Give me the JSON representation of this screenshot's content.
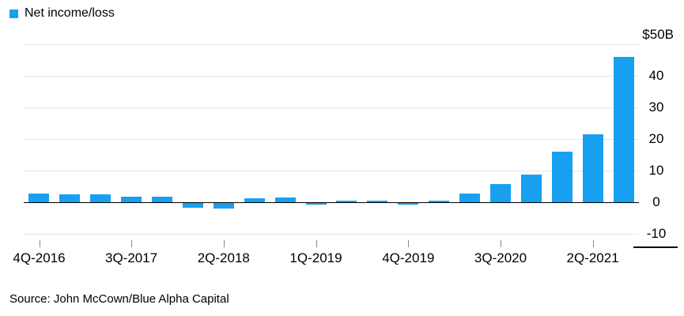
{
  "legend": {
    "label": "Net income/loss",
    "color": "#18a0f0"
  },
  "y_axis": {
    "unit_label": "$50B",
    "tick_labels": [
      "40",
      "30",
      "20",
      "10",
      "0",
      "-10"
    ]
  },
  "x_axis": {
    "tick_labels": [
      "4Q-2016",
      "3Q-2017",
      "2Q-2018",
      "1Q-2019",
      "4Q-2019",
      "3Q-2020",
      "2Q-2021"
    ]
  },
  "source": "Source: John McCown/Blue Alpha Capital",
  "chart_data": {
    "type": "bar",
    "title": "Net income/loss",
    "categories": [
      "4Q-2016",
      "1Q-2017",
      "2Q-2017",
      "3Q-2017",
      "4Q-2017",
      "1Q-2018",
      "2Q-2018",
      "3Q-2018",
      "4Q-2018",
      "1Q-2019",
      "2Q-2019",
      "3Q-2019",
      "4Q-2019",
      "1Q-2020",
      "2Q-2020",
      "3Q-2020",
      "4Q-2020",
      "1Q-2021",
      "2Q-2021",
      "3Q-2021"
    ],
    "values": [
      2.8,
      2.4,
      2.4,
      1.8,
      1.7,
      -1.5,
      -1.7,
      1.2,
      1.4,
      -0.4,
      0.4,
      0.5,
      -0.3,
      0.4,
      2.7,
      5.8,
      8.8,
      16.0,
      21.5,
      46.0
    ],
    "unit": "$B",
    "y_unit_label": "$50B",
    "ylim": [
      -10,
      50
    ],
    "y_gridlines": [
      50,
      40,
      30,
      20,
      10,
      0,
      -10
    ],
    "grid": true,
    "legend_position": "top-left",
    "bar_color": "#18a0f0",
    "gridline_color": "#e6e6e6",
    "zero_line_color": "#000000",
    "text_color": "#000000"
  }
}
